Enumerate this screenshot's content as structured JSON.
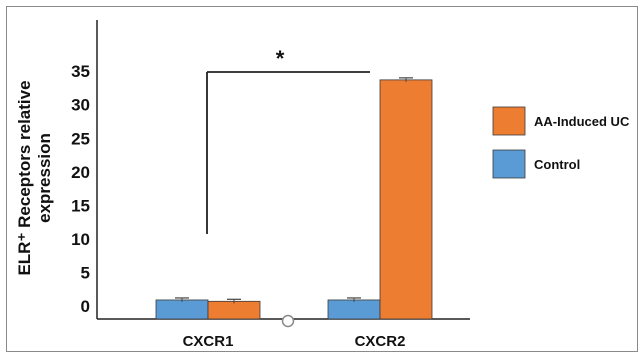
{
  "chart_data": {
    "type": "bar",
    "title": "",
    "xlabel": "",
    "ylabel_line1": "ELR⁺ Receptors relative",
    "ylabel_line2": "expression",
    "categories": [
      "CXCR1",
      "CXCR2"
    ],
    "yticks": [
      0,
      5,
      10,
      15,
      20,
      25,
      30,
      35
    ],
    "ylim": [
      -2,
      41
    ],
    "grid": false,
    "legend_position": "right",
    "series": [
      {
        "name": "Control",
        "color": "#5b9bd5",
        "values": [
          0.9,
          0.9
        ],
        "errors": [
          0.3,
          0.3
        ]
      },
      {
        "name": "AA-Induced UC",
        "color": "#ed7d31",
        "values": [
          0.7,
          33.7
        ],
        "errors": [
          0.3,
          0.3
        ]
      }
    ],
    "annotation": {
      "text": "*",
      "from": "CXCR1",
      "to": "CXCR2"
    }
  }
}
